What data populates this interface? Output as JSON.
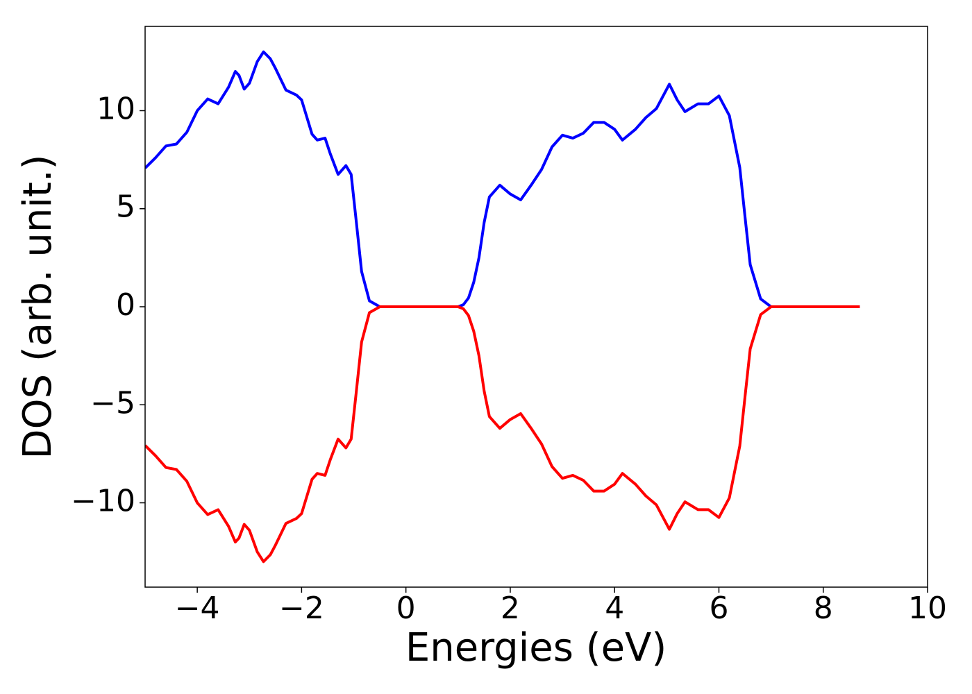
{
  "chart_data": {
    "type": "line",
    "xlabel": "Energies (eV)",
    "ylabel": "DOS (arb. unit.)",
    "x": [
      -5,
      -4.8,
      -4.6,
      -4.4,
      -4.2,
      -4.0,
      -3.8,
      -3.6,
      -3.4,
      -3.27,
      -3.2,
      -3.1,
      -3.0,
      -2.85,
      -2.73,
      -2.6,
      -2.5,
      -2.3,
      -2.1,
      -2.0,
      -1.8,
      -1.7,
      -1.55,
      -1.45,
      -1.3,
      -1.15,
      -1.05,
      -0.95,
      -0.85,
      -0.7,
      -0.5,
      0,
      0.5,
      1.0,
      1.1,
      1.2,
      1.3,
      1.4,
      1.5,
      1.6,
      1.8,
      2.0,
      2.2,
      2.4,
      2.6,
      2.8,
      3.0,
      3.2,
      3.4,
      3.6,
      3.8,
      4.0,
      4.15,
      4.4,
      4.6,
      4.8,
      4.9,
      5.05,
      5.2,
      5.35,
      5.6,
      5.8,
      6.0,
      6.2,
      6.4,
      6.5,
      6.6,
      6.8,
      7.0,
      8.0,
      8.7
    ],
    "series": [
      {
        "color": "#0000ff",
        "values": [
          7.07,
          7.6,
          8.2,
          8.3,
          8.9,
          10.0,
          10.6,
          10.35,
          11.2,
          12.0,
          11.8,
          11.1,
          11.4,
          12.5,
          13.0,
          12.65,
          12.15,
          11.05,
          10.8,
          10.55,
          8.8,
          8.5,
          8.6,
          7.8,
          6.75,
          7.2,
          6.75,
          4.3,
          1.8,
          0.3,
          0,
          0,
          0,
          0,
          0.1,
          0.45,
          1.25,
          2.5,
          4.3,
          5.6,
          6.2,
          5.75,
          5.45,
          6.2,
          7.0,
          8.15,
          8.75,
          8.6,
          8.85,
          9.4,
          9.4,
          9.05,
          8.5,
          9.05,
          9.65,
          10.1,
          10.6,
          11.35,
          10.55,
          9.95,
          10.35,
          10.35,
          10.75,
          9.75,
          7.1,
          4.6,
          2.15,
          0.4,
          0,
          0,
          0
        ]
      },
      {
        "color": "#ff0000",
        "values": [
          -7.07,
          -7.6,
          -8.2,
          -8.3,
          -8.9,
          -10.0,
          -10.6,
          -10.35,
          -11.2,
          -12.0,
          -11.8,
          -11.1,
          -11.4,
          -12.5,
          -13.0,
          -12.65,
          -12.15,
          -11.05,
          -10.8,
          -10.55,
          -8.8,
          -8.5,
          -8.6,
          -7.8,
          -6.75,
          -7.2,
          -6.75,
          -4.3,
          -1.8,
          -0.3,
          0,
          0,
          0,
          0,
          -0.1,
          -0.45,
          -1.25,
          -2.5,
          -4.3,
          -5.6,
          -6.2,
          -5.75,
          -5.45,
          -6.2,
          -7.0,
          -8.15,
          -8.75,
          -8.6,
          -8.85,
          -9.4,
          -9.4,
          -9.05,
          -8.5,
          -9.05,
          -9.65,
          -10.1,
          -10.6,
          -11.35,
          -10.55,
          -9.95,
          -10.35,
          -10.35,
          -10.75,
          -9.75,
          -7.1,
          -4.6,
          -2.15,
          -0.4,
          0,
          0,
          0
        ]
      }
    ],
    "xlim": [
      -5,
      10
    ],
    "xticks": [
      {
        "value": -4,
        "label": "−4"
      },
      {
        "value": -2,
        "label": "−2"
      },
      0,
      2,
      4,
      6,
      8,
      10
    ],
    "ylim": [
      -14.3,
      14.3
    ],
    "yticks": [
      {
        "value": -10,
        "label": "−10"
      },
      {
        "value": -5,
        "label": "−5"
      },
      0,
      5,
      10
    ],
    "grid": false
  }
}
